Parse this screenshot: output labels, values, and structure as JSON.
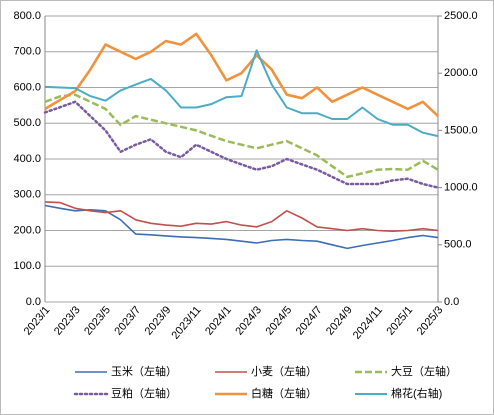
{
  "chart_data": {
    "type": "line",
    "categories": [
      "2023/1",
      null,
      "2023/3",
      null,
      "2023/5",
      null,
      "2023/7",
      null,
      "2023/9",
      null,
      "2023/11",
      null,
      "2024/1",
      null,
      "2024/3",
      null,
      "2024/5",
      null,
      "2024/7",
      null,
      "2024/9",
      null,
      "2024/11",
      null,
      "2025/1",
      null,
      "2025/3"
    ],
    "ylim": [
      0,
      800
    ],
    "yticks": [
      {
        "value": 0,
        "label": "0.0"
      },
      {
        "value": 100,
        "label": "100.0"
      },
      {
        "value": 200,
        "label": "200.0"
      },
      {
        "value": 300,
        "label": "300.0"
      },
      {
        "value": 400,
        "label": "400.0"
      },
      {
        "value": 500,
        "label": "500.0"
      },
      {
        "value": 600,
        "label": "600.0"
      },
      {
        "value": 700,
        "label": "700.0"
      },
      {
        "value": 800,
        "label": "800.0"
      }
    ],
    "y2lim": [
      0,
      2500
    ],
    "y2ticks": [
      {
        "value": 0,
        "label": "0.0"
      },
      {
        "value": 500,
        "label": "500.0"
      },
      {
        "value": 1000,
        "label": "1000.0"
      },
      {
        "value": 1500,
        "label": "1500.0"
      },
      {
        "value": 2000,
        "label": "2000.0"
      },
      {
        "value": 2500,
        "label": "2500.0"
      }
    ],
    "grid": true,
    "legend": "bottom",
    "series": [
      {
        "name": "玉米（左轴）",
        "color": "#3d6db5",
        "style": "solid",
        "values": [
          270,
          262,
          255,
          258,
          255,
          230,
          190,
          188,
          185,
          182,
          180,
          178,
          175,
          170,
          165,
          172,
          175,
          172,
          170,
          160,
          150,
          158,
          165,
          172,
          180,
          186,
          180
        ]
      },
      {
        "name": "小麦（左轴）",
        "color": "#c0504d",
        "style": "solid",
        "values": [
          280,
          278,
          262,
          255,
          250,
          255,
          230,
          220,
          215,
          212,
          220,
          218,
          225,
          215,
          210,
          225,
          255,
          235,
          210,
          205,
          200,
          205,
          200,
          198,
          200,
          205,
          200
        ]
      },
      {
        "name": "大豆（左轴）",
        "color": "#9bbb59",
        "style": "dashed",
        "values": [
          560,
          575,
          580,
          560,
          540,
          495,
          520,
          510,
          500,
          490,
          480,
          465,
          450,
          440,
          430,
          440,
          450,
          430,
          410,
          380,
          350,
          360,
          370,
          372,
          370,
          395,
          370
        ]
      },
      {
        "name": "豆粕（左轴）",
        "color": "#7a5b9e",
        "style": "dotted",
        "values": [
          530,
          545,
          560,
          520,
          480,
          420,
          440,
          455,
          420,
          405,
          440,
          420,
          400,
          385,
          370,
          380,
          400,
          385,
          370,
          350,
          330,
          330,
          330,
          340,
          345,
          330,
          320
        ]
      },
      {
        "name": "白糖（左轴）",
        "color": "#f0923e",
        "style": "thick",
        "values": [
          540,
          565,
          590,
          650,
          720,
          700,
          680,
          700,
          730,
          720,
          750,
          690,
          620,
          640,
          690,
          650,
          580,
          570,
          600,
          560,
          580,
          600,
          580,
          560,
          540,
          560,
          520
        ]
      },
      {
        "name": "棉花(右轴)",
        "color": "#4bacc6",
        "style": "double",
        "axis": "y2",
        "values": [
          1880,
          1875,
          1870,
          1800,
          1760,
          1850,
          1900,
          1950,
          1850,
          1700,
          1700,
          1730,
          1790,
          1800,
          2200,
          1900,
          1700,
          1650,
          1650,
          1600,
          1600,
          1700,
          1600,
          1550,
          1550,
          1480,
          1450
        ]
      }
    ]
  }
}
